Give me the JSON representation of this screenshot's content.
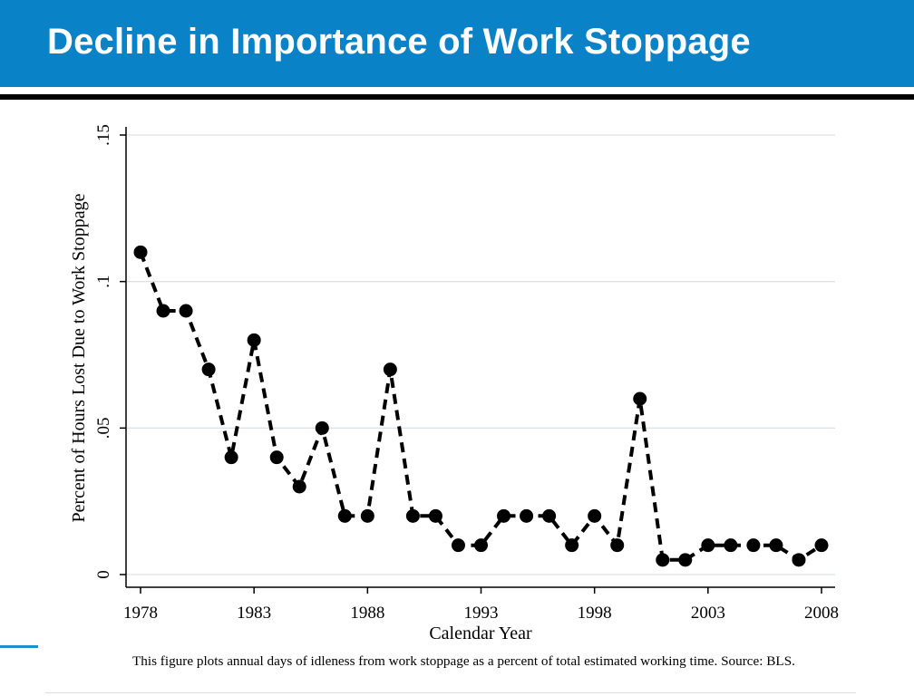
{
  "slide": {
    "title": "Decline in Importance of Work Stoppage",
    "caption": "This figure plots annual days of idleness from work stoppage as a percent of total estimated working time. Source: BLS.",
    "header_color": "#0a82c8"
  },
  "chart_data": {
    "type": "line",
    "xlabel": "Calendar Year",
    "ylabel": "Percent of Hours Lost Due to Work Stoppage",
    "xlim": [
      1978,
      2008
    ],
    "ylim": [
      0,
      0.15
    ],
    "xticks": [
      1978,
      1983,
      1988,
      1993,
      1998,
      2003,
      2008
    ],
    "xtick_labels": [
      "1978",
      "1983",
      "1988",
      "1993",
      "1998",
      "2003",
      "2008"
    ],
    "yticks": [
      0,
      0.05,
      0.1,
      0.15
    ],
    "ytick_labels": [
      "0",
      ".05",
      ".1",
      ".15"
    ],
    "grid": true,
    "line_style": "dashed",
    "marker": "filled-circle",
    "line_color": "#000000",
    "x": [
      1978,
      1979,
      1980,
      1981,
      1982,
      1983,
      1984,
      1985,
      1986,
      1987,
      1988,
      1989,
      1990,
      1991,
      1992,
      1993,
      1994,
      1995,
      1996,
      1997,
      1998,
      1999,
      2000,
      2001,
      2002,
      2003,
      2004,
      2005,
      2006,
      2007,
      2008
    ],
    "y": [
      0.11,
      0.09,
      0.09,
      0.07,
      0.04,
      0.08,
      0.04,
      0.03,
      0.05,
      0.02,
      0.02,
      0.07,
      0.02,
      0.02,
      0.01,
      0.01,
      0.02,
      0.02,
      0.02,
      0.01,
      0.02,
      0.01,
      0.06,
      0.005,
      0.005,
      0.01,
      0.01,
      0.01,
      0.01,
      0.005,
      0.01
    ]
  }
}
